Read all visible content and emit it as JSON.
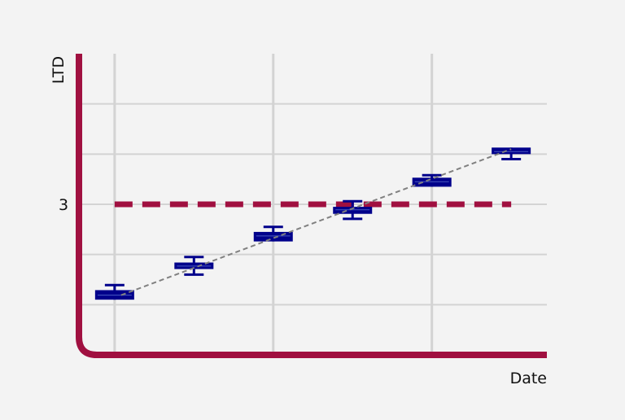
{
  "chart_data": {
    "type": "box",
    "xlabel": "Date",
    "ylabel": "LTD",
    "x": [
      1,
      2,
      3,
      4,
      5,
      6
    ],
    "xlim": [
      0.55,
      6.45
    ],
    "ylim": [
      0,
      6
    ],
    "yticks": [
      {
        "value": 3,
        "label": "3"
      }
    ],
    "x_gridlines": [
      1,
      3,
      5
    ],
    "y_gridlines": [
      1,
      2,
      3,
      4,
      5
    ],
    "grid": true,
    "boxes": [
      {
        "x": 1,
        "low": 1.1,
        "q1": 1.1,
        "median": 1.19,
        "q3": 1.29,
        "high": 1.39
      },
      {
        "x": 2,
        "low": 1.6,
        "q1": 1.71,
        "median": 1.77,
        "q3": 1.84,
        "high": 1.95
      },
      {
        "x": 3,
        "low": 2.26,
        "q1": 2.26,
        "median": 2.37,
        "q3": 2.45,
        "high": 2.55
      },
      {
        "x": 4,
        "low": 2.71,
        "q1": 2.81,
        "median": 2.89,
        "q3": 2.95,
        "high": 3.06
      },
      {
        "x": 5,
        "low": 3.35,
        "q1": 3.35,
        "median": 3.45,
        "q3": 3.53,
        "high": 3.58
      },
      {
        "x": 6,
        "low": 3.9,
        "q1": 4.0,
        "median": 4.05,
        "q3": 4.13,
        "high": 4.13
      }
    ],
    "threshold": {
      "value": 3,
      "x_from": 1,
      "x_to": 6
    },
    "trend": {
      "from": [
        1,
        1.19
      ],
      "to": [
        6,
        4.1
      ]
    },
    "colors": {
      "box": "#00008b",
      "axis": "#a01040",
      "threshold": "#a01040",
      "trend": "#808080",
      "grid": "#d3d3d3",
      "background": "#f3f3f3"
    }
  }
}
